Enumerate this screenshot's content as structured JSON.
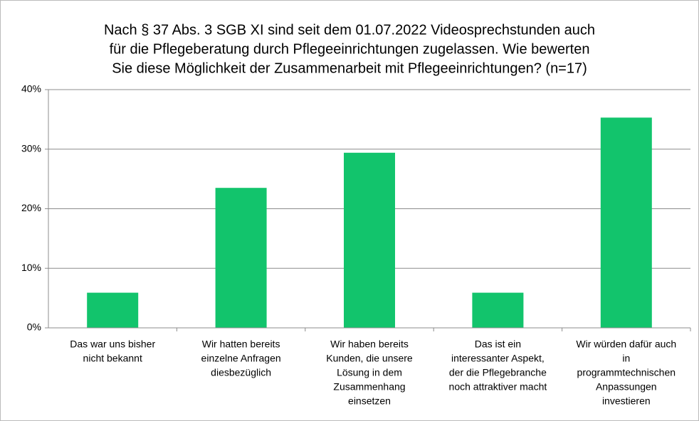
{
  "chart_data": {
    "type": "bar",
    "title": [
      "Nach § 37 Abs. 3 SGB XI sind seit dem 01.07.2022 Videosprechstunden auch",
      "für die Pflegeberatung durch Pflegeeinrichtungen zugelassen. Wie bewerten",
      "Sie diese Möglichkeit der Zusammenarbeit mit Pflegeeinrichtungen? (n=17)"
    ],
    "categories": [
      [
        "Das war uns bisher",
        "nicht bekannt"
      ],
      [
        "Wir hatten bereits",
        "einzelne Anfragen",
        "diesbezüglich"
      ],
      [
        "Wir haben bereits",
        "Kunden, die unsere",
        "Lösung in dem",
        "Zusammenhang",
        "einsetzen"
      ],
      [
        "Das ist ein",
        "interessanter Aspekt,",
        "der die Pflegebranche",
        "noch attraktiver macht"
      ],
      [
        "Wir würden dafür auch",
        "in",
        "programmtechnischen",
        "Anpassungen",
        "investieren"
      ]
    ],
    "values": [
      5.9,
      23.5,
      29.4,
      5.9,
      35.3
    ],
    "color": "#12c46c",
    "ylim": [
      0,
      40
    ],
    "yticks": [
      {
        "value": 0,
        "label": "0%"
      },
      {
        "value": 10,
        "label": "10%"
      },
      {
        "value": 20,
        "label": "20%"
      },
      {
        "value": 30,
        "label": "30%"
      },
      {
        "value": 40,
        "label": "40%"
      }
    ],
    "grid": true
  }
}
